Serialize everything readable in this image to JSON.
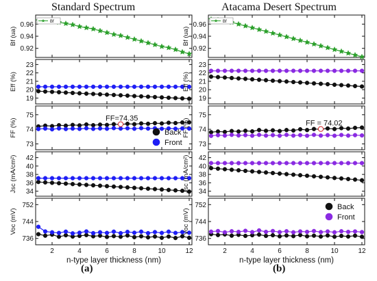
{
  "figure": {
    "left_title": "Standard Spectrum",
    "right_title": "Atacama Desert Spectrum",
    "left_caption": "(a)",
    "right_caption": "(b)"
  },
  "chart_data": [
    {
      "type": "line",
      "title": "Standard Spectrum",
      "xlabel": "n-type layer thickness (nm)",
      "xlim": [
        0.8,
        12.2
      ],
      "xticks": [
        2,
        4,
        6,
        8,
        10,
        12
      ],
      "x": [
        1,
        1.5,
        2,
        2.5,
        3,
        3.5,
        4,
        4.5,
        5,
        5.5,
        6,
        6.5,
        7,
        7.5,
        8,
        8.5,
        9,
        9.5,
        10,
        10.5,
        11,
        11.5,
        12
      ],
      "panels": [
        {
          "ylabel": "Bf (ua)",
          "ylim": [
            0.905,
            0.975
          ],
          "yticks": [
            0.92,
            0.94,
            0.96
          ],
          "legend": "top-left",
          "series": [
            {
              "name": "Bf",
              "color": "#2ca02c",
              "marker": "star",
              "values": [
                0.966,
                0.966,
                0.966,
                0.963,
                0.961,
                0.959,
                0.956,
                0.954,
                0.952,
                0.949,
                0.946,
                0.943,
                0.941,
                0.938,
                0.935,
                0.932,
                0.929,
                0.926,
                0.923,
                0.921,
                0.918,
                0.914,
                0.911
              ]
            }
          ]
        },
        {
          "ylabel": "Eff (%)",
          "ylim": [
            18.3,
            23.6
          ],
          "yticks": [
            19,
            20,
            21,
            22,
            23
          ],
          "series": [
            {
              "name": "Back",
              "color": "#111111",
              "marker": "circle",
              "values": [
                19.82,
                19.78,
                19.74,
                19.7,
                19.65,
                19.61,
                19.57,
                19.53,
                19.49,
                19.45,
                19.41,
                19.37,
                19.33,
                19.29,
                19.24,
                19.2,
                19.16,
                19.12,
                19.08,
                19.04,
                19.0,
                18.96,
                18.92
              ]
            },
            {
              "name": "Front",
              "color": "#1f1ff5",
              "marker": "circle",
              "values": [
                20.35,
                20.35,
                20.35,
                20.35,
                20.35,
                20.35,
                20.35,
                20.35,
                20.35,
                20.35,
                20.35,
                20.35,
                20.35,
                20.35,
                20.35,
                20.35,
                20.35,
                20.35,
                20.35,
                20.35,
                20.35,
                20.35,
                20.35
              ]
            }
          ]
        },
        {
          "ylabel": "FF (%)",
          "ylim": [
            72.6,
            75.6
          ],
          "yticks": [
            73,
            74,
            75
          ],
          "legend": "bottom-right",
          "annotation": {
            "text": "FF=74.35",
            "x": 7.0,
            "y": 74.35
          },
          "series": [
            {
              "name": "Back",
              "color": "#111111",
              "marker": "circle",
              "values": [
                74.2,
                74.25,
                74.22,
                74.28,
                74.25,
                74.3,
                74.27,
                74.33,
                74.28,
                74.32,
                74.3,
                74.35,
                74.33,
                74.38,
                74.35,
                74.4,
                74.38,
                74.42,
                74.4,
                74.45,
                74.43,
                74.47,
                74.48
              ]
            },
            {
              "name": "Front",
              "color": "#1f1ff5",
              "marker": "circle",
              "values": [
                74.02,
                74.05,
                74.0,
                74.06,
                74.02,
                74.05,
                74.03,
                74.07,
                74.03,
                74.06,
                74.04,
                74.08,
                74.05,
                74.07,
                74.04,
                74.08,
                74.05,
                74.07,
                74.04,
                74.06,
                74.04,
                74.06,
                74.05
              ]
            }
          ]
        },
        {
          "ylabel": "Jsc (mA/cm²)",
          "ylim": [
            32.8,
            43.4
          ],
          "yticks": [
            34,
            36,
            38,
            40,
            42
          ],
          "series": [
            {
              "name": "Back",
              "color": "#111111",
              "marker": "circle",
              "values": [
                36.2,
                36.1,
                36.0,
                35.9,
                35.8,
                35.7,
                35.6,
                35.5,
                35.4,
                35.3,
                35.2,
                35.1,
                35.0,
                34.9,
                34.8,
                34.7,
                34.6,
                34.5,
                34.4,
                34.3,
                34.2,
                34.1,
                33.9
              ]
            },
            {
              "name": "Front",
              "color": "#1f1ff5",
              "marker": "circle",
              "values": [
                37.1,
                37.1,
                37.1,
                37.1,
                37.1,
                37.1,
                37.1,
                37.1,
                37.1,
                37.1,
                37.1,
                37.1,
                37.1,
                37.1,
                37.1,
                37.1,
                37.1,
                37.1,
                37.1,
                37.1,
                37.1,
                37.1,
                37.1
              ]
            }
          ]
        },
        {
          "ylabel": "Voc (mV)",
          "ylim": [
            733,
            755
          ],
          "yticks": [
            736,
            744,
            752
          ],
          "series": [
            {
              "name": "Back",
              "color": "#111111",
              "marker": "circle",
              "values": [
                738.0,
                737.3,
                737.8,
                736.8,
                737.5,
                736.9,
                737.2,
                737.6,
                737.0,
                737.3,
                736.7,
                737.1,
                736.8,
                737.4,
                736.6,
                737.0,
                736.5,
                736.9,
                736.3,
                736.9,
                736.2,
                737.0,
                736.3
              ]
            },
            {
              "name": "Front",
              "color": "#1f1ff5",
              "marker": "circle",
              "values": [
                741.5,
                739.3,
                738.9,
                738.6,
                739.2,
                738.4,
                738.7,
                739.3,
                738.5,
                738.9,
                738.6,
                739.2,
                738.5,
                739.1,
                738.7,
                739.2,
                738.5,
                739.0,
                738.6,
                739.2,
                738.6,
                739.0,
                738.7
              ]
            }
          ]
        }
      ]
    },
    {
      "type": "line",
      "title": "Atacama Desert Spectrum",
      "xlabel": "n-type layer thickness (nm)",
      "xlim": [
        0.8,
        12.2
      ],
      "xticks": [
        2,
        4,
        6,
        8,
        10,
        12
      ],
      "x": [
        1,
        1.5,
        2,
        2.5,
        3,
        3.5,
        4,
        4.5,
        5,
        5.5,
        6,
        6.5,
        7,
        7.5,
        8,
        8.5,
        9,
        9.5,
        10,
        10.5,
        11,
        11.5,
        12
      ],
      "panels": [
        {
          "ylabel": "Bf (ua)",
          "ylim": [
            0.905,
            0.975
          ],
          "yticks": [
            0.92,
            0.94,
            0.96
          ],
          "legend": "top-left",
          "series": [
            {
              "name": "Bf",
              "color": "#2ca02c",
              "marker": "star",
              "values": [
                0.968,
                0.967,
                0.966,
                0.963,
                0.96,
                0.957,
                0.954,
                0.951,
                0.948,
                0.945,
                0.942,
                0.939,
                0.936,
                0.933,
                0.93,
                0.927,
                0.924,
                0.921,
                0.918,
                0.915,
                0.912,
                0.909,
                0.906
              ]
            }
          ]
        },
        {
          "ylabel": "Eff (%)",
          "ylim": [
            18.3,
            23.6
          ],
          "yticks": [
            19,
            20,
            21,
            22,
            23
          ],
          "series": [
            {
              "name": "Back",
              "color": "#111111",
              "marker": "circle",
              "values": [
                21.55,
                21.5,
                21.45,
                21.39,
                21.34,
                21.29,
                21.23,
                21.18,
                21.13,
                21.07,
                21.02,
                20.97,
                20.91,
                20.86,
                20.81,
                20.75,
                20.7,
                20.65,
                20.59,
                20.54,
                20.49,
                20.43,
                20.38
              ]
            },
            {
              "name": "Front",
              "color": "#8a2be2",
              "marker": "circle",
              "values": [
                22.25,
                22.25,
                22.25,
                22.25,
                22.25,
                22.25,
                22.25,
                22.25,
                22.25,
                22.25,
                22.25,
                22.25,
                22.25,
                22.25,
                22.25,
                22.25,
                22.25,
                22.25,
                22.25,
                22.25,
                22.25,
                22.25,
                22.25
              ]
            }
          ]
        },
        {
          "ylabel": "FF (%)",
          "ylim": [
            72.6,
            75.6
          ],
          "yticks": [
            73,
            74,
            75
          ],
          "annotation": {
            "text": "FF = 74.02",
            "x": 9.0,
            "y": 74.02
          },
          "series": [
            {
              "name": "Back",
              "color": "#111111",
              "marker": "circle",
              "values": [
                73.8,
                73.85,
                73.82,
                73.88,
                73.85,
                73.9,
                73.86,
                73.95,
                73.9,
                73.93,
                73.88,
                73.95,
                73.92,
                74.0,
                73.95,
                74.02,
                74.0,
                74.06,
                74.02,
                74.08,
                74.05,
                74.1,
                74.12
              ]
            },
            {
              "name": "Front",
              "color": "#8a2be2",
              "marker": "circle",
              "values": [
                73.55,
                73.6,
                73.57,
                73.62,
                73.58,
                73.6,
                73.56,
                73.62,
                73.57,
                73.6,
                73.56,
                73.62,
                73.57,
                73.6,
                73.56,
                73.62,
                73.57,
                73.6,
                73.56,
                73.61,
                73.57,
                73.6,
                73.58
              ]
            }
          ]
        },
        {
          "ylabel": "Jsc (mA/cm²)",
          "ylim": [
            32.8,
            43.4
          ],
          "yticks": [
            34,
            36,
            38,
            40,
            42
          ],
          "series": [
            {
              "name": "Back",
              "color": "#111111",
              "marker": "circle",
              "values": [
                39.5,
                39.37,
                39.24,
                39.11,
                38.98,
                38.85,
                38.72,
                38.59,
                38.46,
                38.33,
                38.2,
                38.07,
                37.94,
                37.81,
                37.68,
                37.55,
                37.42,
                37.29,
                37.16,
                37.03,
                36.9,
                36.77,
                36.6
              ]
            },
            {
              "name": "Front",
              "color": "#8a2be2",
              "marker": "circle",
              "values": [
                40.7,
                40.7,
                40.7,
                40.7,
                40.7,
                40.7,
                40.7,
                40.7,
                40.7,
                40.7,
                40.7,
                40.7,
                40.7,
                40.7,
                40.7,
                40.7,
                40.7,
                40.7,
                40.7,
                40.7,
                40.7,
                40.7,
                40.7
              ]
            }
          ]
        },
        {
          "ylabel": "Voc (mV)",
          "ylim": [
            733,
            755
          ],
          "yticks": [
            736,
            744,
            752
          ],
          "legend": "top-right",
          "series": [
            {
              "name": "Back",
              "color": "#111111",
              "marker": "circle",
              "values": [
                738.0,
                737.6,
                737.9,
                737.3,
                737.7,
                737.2,
                737.5,
                737.8,
                737.2,
                737.5,
                737.0,
                737.4,
                737.1,
                737.6,
                737.0,
                737.3,
                736.9,
                737.4,
                736.8,
                737.2,
                736.9,
                737.3,
                736.8
              ]
            },
            {
              "name": "Front",
              "color": "#8a2be2",
              "marker": "circle",
              "values": [
                739.2,
                739.5,
                738.9,
                739.4,
                739.1,
                739.6,
                739.0,
                739.8,
                739.1,
                739.5,
                739.0,
                739.4,
                738.9,
                739.3,
                739.1,
                739.5,
                739.0,
                739.3,
                738.9,
                739.4,
                739.1,
                739.3,
                739.0
              ]
            }
          ]
        }
      ]
    }
  ]
}
